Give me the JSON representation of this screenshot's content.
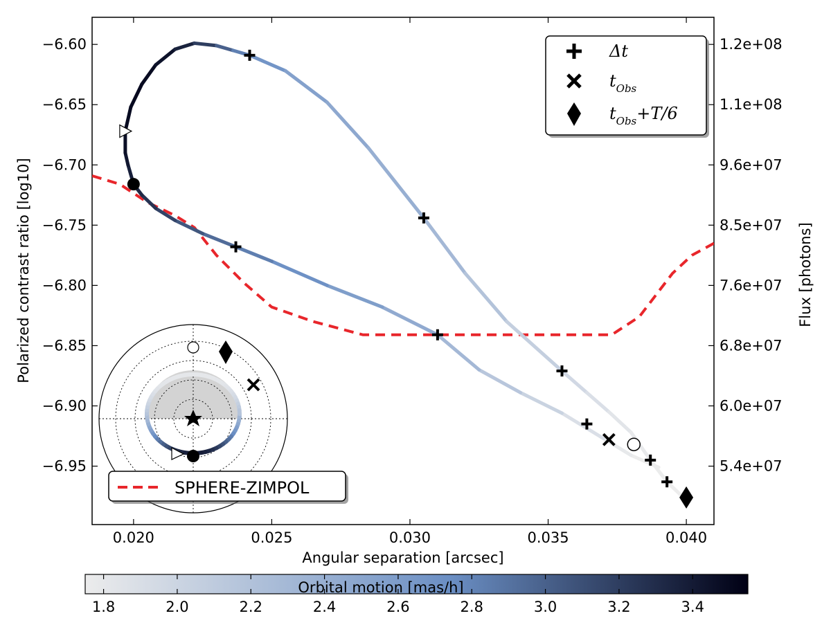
{
  "chart_data": {
    "type": "line",
    "xlabel": "Angular separation [arcsec]",
    "ylabel": "Polarized contrast ratio [log10]",
    "y2label": "Flux [photons]",
    "xlim": [
      0.0185,
      0.041
    ],
    "ylim": [
      -6.9985,
      -6.5775
    ],
    "x_ticks": [
      0.02,
      0.025,
      0.03,
      0.035,
      0.04
    ],
    "x_tick_labels": [
      "0.020",
      "0.025",
      "0.030",
      "0.035",
      "0.040"
    ],
    "y_ticks": [
      -6.6,
      -6.65,
      -6.7,
      -6.75,
      -6.8,
      -6.85,
      -6.9,
      -6.95
    ],
    "y_tick_labels": [
      "−6.60",
      "−6.65",
      "−6.70",
      "−6.75",
      "−6.80",
      "−6.85",
      "−6.90",
      "−6.95"
    ],
    "y2_tick_y": [
      -6.6,
      -6.65,
      -6.7,
      -6.75,
      -6.8,
      -6.85,
      -6.9,
      -6.95
    ],
    "y2_tick_labels": [
      "1.2e+08",
      "1.1e+08",
      "9.6e+07",
      "8.5e+07",
      "7.6e+07",
      "6.8e+07",
      "6.0e+07",
      "5.4e+07"
    ],
    "grid": false,
    "legend_position": "top-right",
    "orbit_curve": [
      {
        "x": 0.039,
        "y": -6.951,
        "m": 1.75
      },
      {
        "x": 0.038,
        "y": -6.941,
        "m": 1.75
      },
      {
        "x": 0.037,
        "y": -6.927,
        "m": 1.82
      },
      {
        "x": 0.0355,
        "y": -6.906,
        "m": 1.95
      },
      {
        "x": 0.034,
        "y": -6.889,
        "m": 2.08
      },
      {
        "x": 0.0325,
        "y": -6.87,
        "m": 2.22
      },
      {
        "x": 0.031,
        "y": -6.841,
        "m": 2.38
      },
      {
        "x": 0.029,
        "y": -6.818,
        "m": 2.52
      },
      {
        "x": 0.027,
        "y": -6.8,
        "m": 2.65
      },
      {
        "x": 0.025,
        "y": -6.78,
        "m": 2.78
      },
      {
        "x": 0.0237,
        "y": -6.768,
        "m": 2.88
      },
      {
        "x": 0.0225,
        "y": -6.757,
        "m": 3.0
      },
      {
        "x": 0.0215,
        "y": -6.746,
        "m": 3.12
      },
      {
        "x": 0.0208,
        "y": -6.736,
        "m": 3.22
      },
      {
        "x": 0.0203,
        "y": -6.725,
        "m": 3.3
      },
      {
        "x": 0.02,
        "y": -6.716,
        "m": 3.35
      },
      {
        "x": 0.0198,
        "y": -6.7,
        "m": 3.4
      },
      {
        "x": 0.0197,
        "y": -6.69,
        "m": 3.45
      },
      {
        "x": 0.0197,
        "y": -6.672,
        "m": 3.48
      },
      {
        "x": 0.0199,
        "y": -6.652,
        "m": 3.5
      },
      {
        "x": 0.0203,
        "y": -6.633,
        "m": 3.5
      },
      {
        "x": 0.0208,
        "y": -6.617,
        "m": 3.48
      },
      {
        "x": 0.0215,
        "y": -6.604,
        "m": 3.42
      },
      {
        "x": 0.0222,
        "y": -6.599,
        "m": 3.3
      },
      {
        "x": 0.023,
        "y": -6.601,
        "m": 3.1
      },
      {
        "x": 0.0236,
        "y": -6.605,
        "m": 2.9
      },
      {
        "x": 0.0242,
        "y": -6.609,
        "m": 2.75
      },
      {
        "x": 0.0255,
        "y": -6.622,
        "m": 2.6
      },
      {
        "x": 0.027,
        "y": -6.648,
        "m": 2.5
      },
      {
        "x": 0.0285,
        "y": -6.686,
        "m": 2.45
      },
      {
        "x": 0.0305,
        "y": -6.744,
        "m": 2.35
      },
      {
        "x": 0.032,
        "y": -6.79,
        "m": 2.25
      },
      {
        "x": 0.0335,
        "y": -6.83,
        "m": 2.12
      },
      {
        "x": 0.0355,
        "y": -6.871,
        "m": 2.0
      },
      {
        "x": 0.0364,
        "y": -6.889,
        "m": 1.92
      },
      {
        "x": 0.0372,
        "y": -6.905,
        "m": 1.85
      },
      {
        "x": 0.038,
        "y": -6.922,
        "m": 1.8
      },
      {
        "x": 0.0387,
        "y": -6.945,
        "m": 1.76
      },
      {
        "x": 0.0393,
        "y": -6.963,
        "m": 1.75
      },
      {
        "x": 0.0398,
        "y": -6.974,
        "m": 1.75
      }
    ],
    "delta_t_markers": [
      {
        "x": 0.0242,
        "y": -6.609
      },
      {
        "x": 0.0305,
        "y": -6.744
      },
      {
        "x": 0.0237,
        "y": -6.768
      },
      {
        "x": 0.031,
        "y": -6.841
      },
      {
        "x": 0.0355,
        "y": -6.871
      },
      {
        "x": 0.0364,
        "y": -6.915
      },
      {
        "x": 0.0387,
        "y": -6.945
      },
      {
        "x": 0.0393,
        "y": -6.963
      }
    ],
    "t_obs_marker": {
      "x": 0.0372,
      "y": -6.928
    },
    "t_obs_t6_marker": {
      "x": 0.04,
      "y": -6.976
    },
    "open_circle": {
      "x": 0.0381,
      "y": -6.932
    },
    "filled_circle": {
      "x": 0.02,
      "y": -6.716
    },
    "triangle": {
      "x": 0.0197,
      "y": -6.672
    },
    "sphere_zimpol": {
      "name": "SPHERE-ZIMPOL",
      "color": "#e8262b",
      "x": [
        0.0185,
        0.0195,
        0.0205,
        0.0215,
        0.0222,
        0.023,
        0.024,
        0.025,
        0.0265,
        0.0283,
        0.03,
        0.032,
        0.034,
        0.036,
        0.0373,
        0.0383,
        0.0395,
        0.0402,
        0.041
      ],
      "y": [
        -6.709,
        -6.716,
        -6.731,
        -6.742,
        -6.752,
        -6.775,
        -6.798,
        -6.818,
        -6.83,
        -6.841,
        -6.841,
        -6.841,
        -6.841,
        -6.841,
        -6.841,
        -6.826,
        -6.79,
        -6.775,
        -6.765
      ]
    },
    "legend": [
      {
        "label": "Δt",
        "marker": "plus"
      },
      {
        "label": "t",
        "sub": "Obs",
        "marker": "x"
      },
      {
        "label": "t",
        "sub": "Obs",
        "suffix": "+T/6",
        "marker": "diamond"
      }
    ],
    "colorbar": {
      "label": "Orbital motion [mas/h]",
      "range": [
        1.75,
        3.55
      ],
      "ticks": [
        1.8,
        2.0,
        2.2,
        2.4,
        2.6,
        2.8,
        3.0,
        3.2,
        3.4
      ],
      "tick_labels": [
        "1.8",
        "2.0",
        "2.2",
        "2.4",
        "2.6",
        "2.8",
        "3.0",
        "3.2",
        "3.4"
      ],
      "colors": [
        "#ececec",
        "#6b8fc4",
        "#000014"
      ]
    }
  }
}
